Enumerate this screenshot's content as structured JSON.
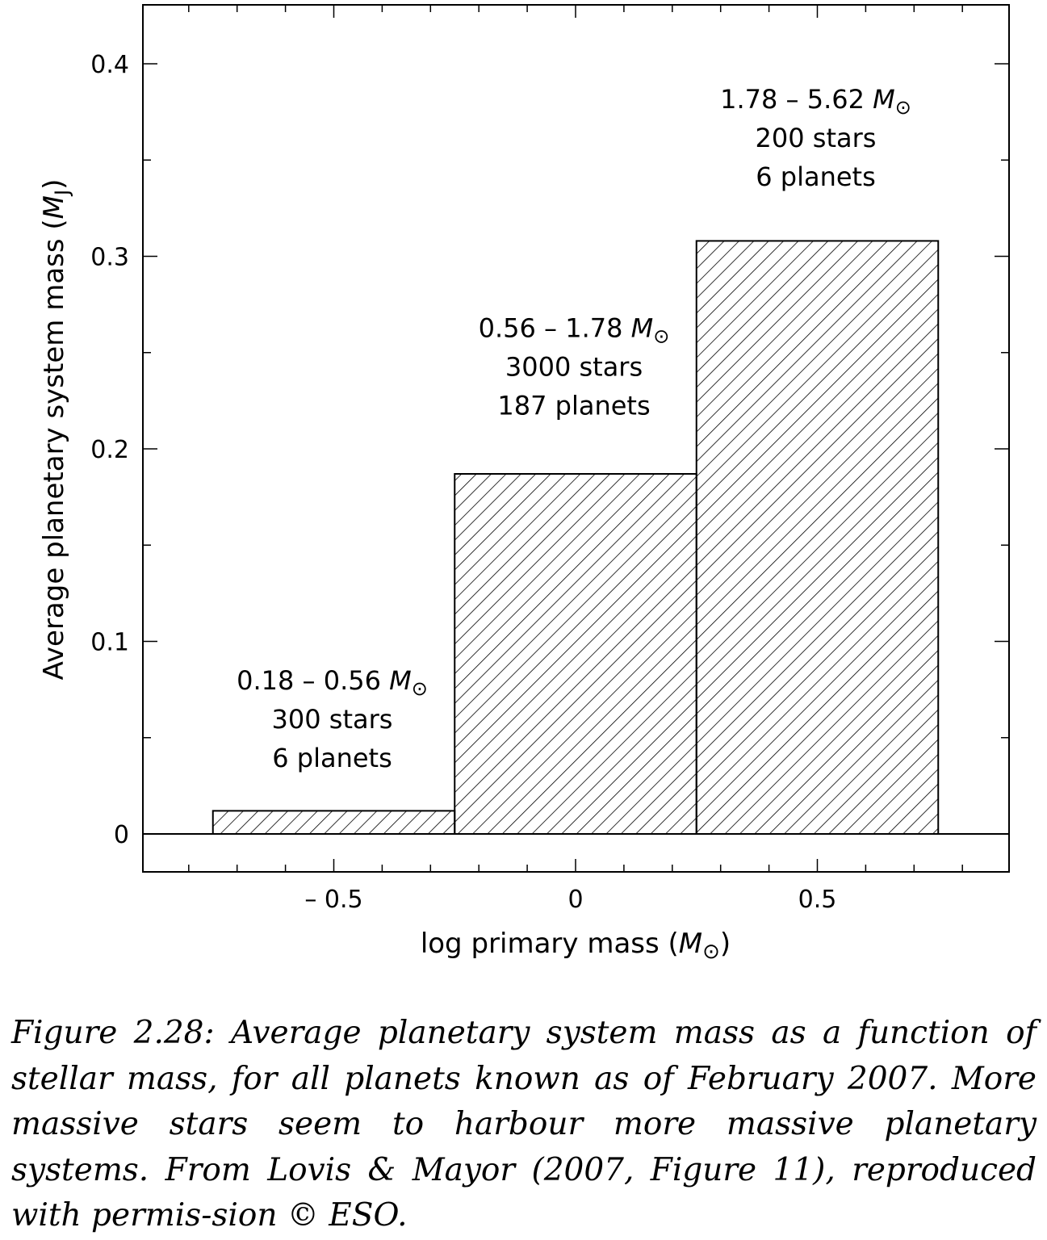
{
  "chart_data": {
    "type": "bar",
    "xlabel": "log primary mass",
    "xlabel_unit": "M",
    "ylabel": "Average planetary system mass",
    "ylabel_unit": "M",
    "ylabel_unit_sub": "J",
    "xlim": [
      -0.9,
      0.9
    ],
    "ylim": [
      -0.02,
      0.43
    ],
    "x_ticks": [
      -0.5,
      0,
      0.5
    ],
    "x_tick_labels": [
      "– 0.5",
      "0",
      "0.5"
    ],
    "y_ticks": [
      0,
      0.1,
      0.2,
      0.3,
      0.4
    ],
    "y_tick_labels": [
      "0",
      "0.1",
      "0.2",
      "0.3",
      "0.4"
    ],
    "bars": [
      {
        "x0": -0.75,
        "x1": -0.25,
        "value": 0.012,
        "range": "0.18 – 0.56",
        "stars": "300 stars",
        "planets": "6 planets"
      },
      {
        "x0": -0.25,
        "x1": 0.25,
        "value": 0.187,
        "range": "0.56 – 1.78",
        "stars": "3000 stars",
        "planets": "187 planets"
      },
      {
        "x0": 0.25,
        "x1": 0.75,
        "value": 0.308,
        "range": "1.78 – 5.62",
        "stars": "200 stars",
        "planets": "6 planets"
      }
    ],
    "grid": false,
    "fill": "hatched"
  },
  "caption": "Figure 2.28: Average planetary system mass as a function of stellar mass, for all planets known as of February 2007. More massive stars seem to harbour more massive planetary systems. From Lovis & Mayor (2007, Figure 11), reproduced with permis-sion © ESO."
}
